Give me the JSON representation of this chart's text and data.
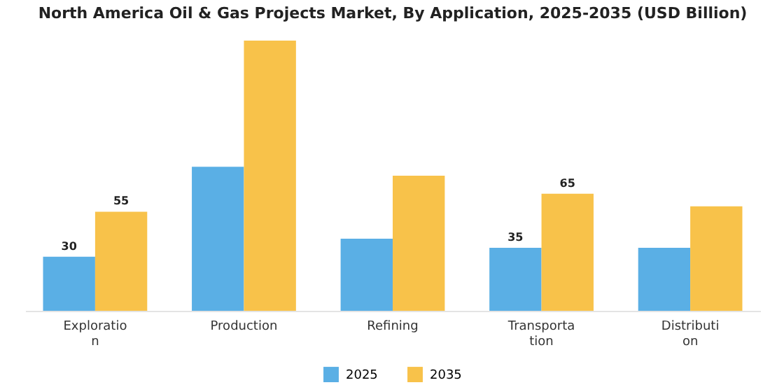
{
  "chart_data": {
    "type": "bar",
    "title": "North America Oil & Gas Projects Market, By Application, 2025-2035 (USD Billion)",
    "categories": [
      "Exploratio\nn",
      "Production",
      "Refining",
      "Transporta\ntion",
      "Distributi\non"
    ],
    "legend": "bottom",
    "series": [
      {
        "name": "2025",
        "color": "#5aafe5",
        "values": [
          30,
          80,
          40,
          35,
          35
        ],
        "value_labels": [
          "30",
          null,
          null,
          "35",
          null
        ]
      },
      {
        "name": "2035",
        "color": "#f8c24a",
        "values": [
          55,
          150,
          75,
          65,
          58
        ],
        "value_labels": [
          "55",
          null,
          null,
          "65",
          null
        ]
      }
    ]
  }
}
